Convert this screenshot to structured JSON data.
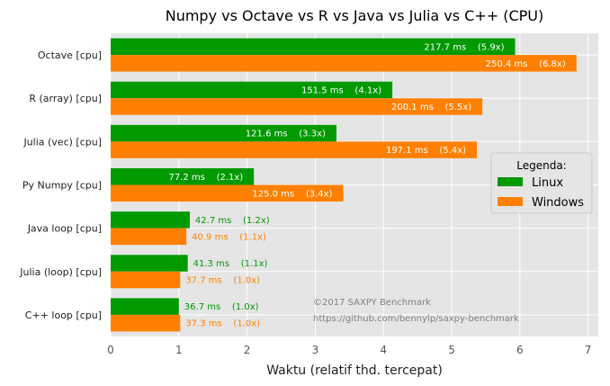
{
  "chart_data": {
    "type": "bar",
    "orientation": "horizontal",
    "title": "Numpy vs Octave vs R vs Java vs Julia vs C++ (CPU)",
    "xlabel": "Waktu (relatif thd. tercepat)",
    "ylabel": "",
    "xlim": [
      0,
      7.15
    ],
    "xticks": [
      0,
      1,
      2,
      3,
      4,
      5,
      6,
      7
    ],
    "grid": true,
    "categories": [
      "Octave [cpu]",
      "R (array) [cpu]",
      "Julia (vec) [cpu]",
      "Py Numpy [cpu]",
      "Java loop [cpu]",
      "Julia (loop) [cpu]",
      "C++ loop [cpu]"
    ],
    "series": [
      {
        "name": "Linux",
        "color": "#009900",
        "values": [
          5.93,
          4.13,
          3.31,
          2.1,
          1.16,
          1.13,
          1.0
        ],
        "labels": [
          "217.7 ms    (5.9x)",
          "151.5 ms    (4.1x)",
          "121.6 ms    (3.3x)",
          "77.2 ms    (2.1x)",
          "42.7 ms    (1.2x)",
          "41.3 ms    (1.1x)",
          "36.7 ms    (1.0x)"
        ]
      },
      {
        "name": "Windows",
        "color": "#ff8000",
        "values": [
          6.83,
          5.45,
          5.37,
          3.41,
          1.11,
          1.02,
          1.02
        ],
        "labels": [
          "250.4 ms    (6.8x)",
          "200.1 ms    (5.5x)",
          "197.1 ms    (5.4x)",
          "125.0 ms    (3.4x)",
          "40.9 ms    (1.1x)",
          "37.7 ms    (1.0x)",
          "37.3 ms    (1.0x)"
        ]
      }
    ],
    "legend": {
      "title": "Legenda:",
      "position": "right"
    },
    "annotations": [
      "©2017 SAXPY Benchmark",
      "https://github.com/bennylp/saxpy-benchmark"
    ]
  }
}
